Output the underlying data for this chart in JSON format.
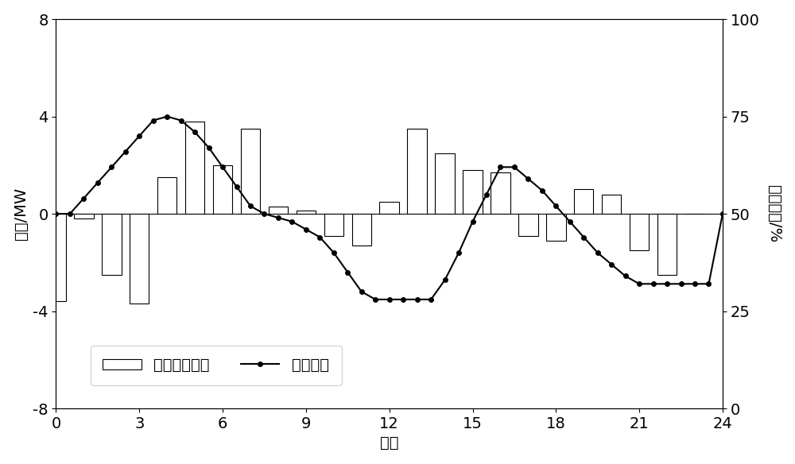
{
  "xlabel": "时刻",
  "ylabel_left": "功率/MW",
  "ylabel_right": "储热容量/%",
  "xlim": [
    0,
    24
  ],
  "ylim_left": [
    -8,
    8
  ],
  "ylim_right": [
    0,
    100
  ],
  "xticks": [
    0,
    3,
    6,
    9,
    12,
    15,
    18,
    21,
    24
  ],
  "yticks_left": [
    -8,
    -4,
    0,
    4,
    8
  ],
  "yticks_right": [
    0,
    25,
    50,
    75,
    100
  ],
  "bar_x": [
    0,
    1,
    2,
    3,
    4,
    5,
    6,
    7,
    8,
    9,
    10,
    11,
    12,
    13,
    14,
    15,
    16,
    17,
    18,
    19,
    20,
    21,
    22,
    23
  ],
  "bar_vals": [
    -3.6,
    -0.2,
    -2.5,
    -3.7,
    1.5,
    3.8,
    2.0,
    3.5,
    0.3,
    0.15,
    -0.9,
    -1.3,
    0.5,
    3.5,
    2.5,
    1.8,
    1.7,
    -0.9,
    -1.1,
    1.0,
    0.8,
    -1.5,
    -2.5,
    0.0
  ],
  "line_x": [
    0,
    0.5,
    1,
    1.5,
    2,
    2.5,
    3,
    3.5,
    4,
    4.5,
    5,
    5.5,
    6,
    6.5,
    7,
    7.5,
    8,
    8.5,
    9,
    9.5,
    10,
    10.5,
    11,
    11.5,
    12,
    12.5,
    13,
    13.5,
    14,
    14.5,
    15,
    15.5,
    16,
    16.5,
    17,
    17.5,
    18,
    18.5,
    19,
    19.5,
    20,
    20.5,
    21,
    21.5,
    22,
    22.5,
    23,
    23.5,
    24
  ],
  "line_vals_pct": [
    50,
    50,
    54,
    58,
    62,
    66,
    70,
    74,
    75,
    74,
    71,
    67,
    62,
    57,
    52,
    50,
    49,
    48,
    46,
    44,
    40,
    35,
    30,
    28,
    28,
    28,
    28,
    28,
    33,
    40,
    48,
    55,
    62,
    62,
    59,
    56,
    52,
    48,
    44,
    40,
    37,
    34,
    32,
    32,
    32,
    32,
    32,
    32,
    50
  ],
  "bar_color": "#ffffff",
  "bar_edgecolor": "#000000",
  "line_color": "#000000",
  "marker": "o",
  "marker_size": 4,
  "line_width": 1.5,
  "bar_width": 0.7,
  "font_size": 14,
  "legend_label_bar": "储热设备功率",
  "legend_label_line": "储热容量"
}
